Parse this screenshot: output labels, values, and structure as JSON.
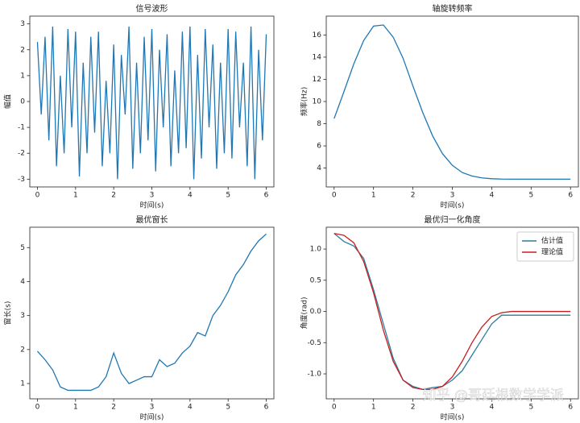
{
  "chart_data": [
    {
      "type": "line",
      "title": "信号波形",
      "xlabel": "时间(s)",
      "ylabel": "幅值",
      "x": [
        0,
        0.1,
        0.2,
        0.3,
        0.4,
        0.5,
        0.6,
        0.7,
        0.8,
        0.9,
        1.0,
        1.1,
        1.2,
        1.3,
        1.4,
        1.5,
        1.6,
        1.7,
        1.8,
        1.9,
        2.0,
        2.1,
        2.2,
        2.3,
        2.4,
        2.5,
        2.6,
        2.7,
        2.8,
        2.9,
        3.0,
        3.1,
        3.2,
        3.3,
        3.4,
        3.5,
        3.6,
        3.7,
        3.8,
        3.9,
        4.0,
        4.1,
        4.2,
        4.3,
        4.4,
        4.5,
        4.6,
        4.7,
        4.8,
        4.9,
        5.0,
        5.1,
        5.2,
        5.3,
        5.4,
        5.5,
        5.6,
        5.7,
        5.8,
        5.9,
        6.0
      ],
      "series": [
        {
          "color": "#1f77b4",
          "values": [
            2.3,
            -0.5,
            2.5,
            -1.5,
            2.9,
            -2.5,
            1.0,
            -2.0,
            2.8,
            -1.0,
            2.7,
            -2.9,
            1.5,
            -2.0,
            2.5,
            -1.2,
            2.7,
            -2.5,
            0.8,
            -2.0,
            2.2,
            -3.0,
            1.8,
            -0.5,
            2.9,
            -2.6,
            1.5,
            -2.0,
            2.5,
            -1.5,
            2.8,
            -2.7,
            2.0,
            -1.0,
            2.6,
            -2.5,
            1.2,
            -2.0,
            2.7,
            -1.8,
            2.9,
            -3.0,
            1.8,
            -2.2,
            2.8,
            -1.0,
            2.2,
            -2.6,
            1.5,
            -2.0,
            2.8,
            -2.2,
            2.7,
            -1.0,
            1.5,
            -2.5,
            2.9,
            -3.0,
            2.0,
            -1.5,
            2.6
          ]
        }
      ],
      "xlim": [
        -0.2,
        6.2
      ],
      "xticks": [
        0,
        1,
        2,
        3,
        4,
        5,
        6
      ],
      "ylim": [
        -3.3,
        3.3
      ],
      "yticks": [
        -3,
        -2,
        -1,
        0,
        1,
        2,
        3
      ]
    },
    {
      "type": "line",
      "title": "轴旋转频率",
      "xlabel": "时间(s)",
      "ylabel": "频率(Hz)",
      "x": [
        0,
        0.25,
        0.5,
        0.75,
        1.0,
        1.25,
        1.5,
        1.75,
        2.0,
        2.25,
        2.5,
        2.75,
        3.0,
        3.25,
        3.5,
        3.75,
        4.0,
        4.25,
        4.5,
        4.75,
        5.0,
        5.25,
        5.5,
        5.75,
        6.0
      ],
      "series": [
        {
          "color": "#1f77b4",
          "values": [
            8.46,
            10.9,
            13.4,
            15.5,
            16.8,
            16.9,
            15.8,
            13.9,
            11.4,
            9.0,
            6.9,
            5.3,
            4.25,
            3.6,
            3.28,
            3.12,
            3.04,
            3.01,
            3.0,
            3.0,
            3.0,
            3.0,
            3.0,
            3.0,
            3.0
          ]
        }
      ],
      "xlim": [
        -0.2,
        6.2
      ],
      "xticks": [
        0,
        1,
        2,
        3,
        4,
        5,
        6
      ],
      "ylim": [
        2.3,
        17.7
      ],
      "yticks": [
        4,
        6,
        8,
        10,
        12,
        14,
        16
      ]
    },
    {
      "type": "line",
      "title": "最优窗长",
      "xlabel": "时间(s)",
      "ylabel": "窗长(s)",
      "x": [
        0,
        0.2,
        0.4,
        0.6,
        0.8,
        1.0,
        1.2,
        1.4,
        1.6,
        1.8,
        2.0,
        2.2,
        2.4,
        2.6,
        2.8,
        3.0,
        3.2,
        3.4,
        3.6,
        3.8,
        4.0,
        4.2,
        4.4,
        4.6,
        4.8,
        5.0,
        5.2,
        5.4,
        5.6,
        5.8,
        6.0
      ],
      "series": [
        {
          "color": "#1f77b4",
          "values": [
            1.95,
            1.7,
            1.4,
            0.9,
            0.8,
            0.8,
            0.8,
            0.8,
            0.9,
            1.2,
            1.9,
            1.3,
            1.0,
            1.1,
            1.2,
            1.2,
            1.7,
            1.5,
            1.6,
            1.9,
            2.1,
            2.5,
            2.4,
            3.0,
            3.3,
            3.7,
            4.2,
            4.5,
            4.9,
            5.2,
            5.4
          ]
        }
      ],
      "xlim": [
        -0.2,
        6.2
      ],
      "xticks": [
        0,
        1,
        2,
        3,
        4,
        5,
        6
      ],
      "ylim": [
        0.55,
        5.6
      ],
      "yticks": [
        1,
        2,
        3,
        4,
        5
      ]
    },
    {
      "type": "line",
      "title": "最优归一化角度",
      "xlabel": "时间(s)",
      "ylabel": "角度(rad)",
      "legend": "upper right",
      "watermark": "知乎 @哥廷根数学学派",
      "x": [
        0,
        0.25,
        0.5,
        0.75,
        1.0,
        1.25,
        1.5,
        1.75,
        2.0,
        2.25,
        2.5,
        2.75,
        3.0,
        3.25,
        3.5,
        3.75,
        4.0,
        4.25,
        4.5,
        4.75,
        5.0,
        5.25,
        5.5,
        5.75,
        6.0
      ],
      "series": [
        {
          "name": "估计值",
          "color": "#2a7f9e",
          "values": [
            1.25,
            1.12,
            1.05,
            0.85,
            0.35,
            -0.2,
            -0.75,
            -1.1,
            -1.2,
            -1.25,
            -1.22,
            -1.2,
            -1.1,
            -0.95,
            -0.7,
            -0.45,
            -0.2,
            -0.06,
            -0.06,
            -0.06,
            -0.06,
            -0.06,
            -0.06,
            -0.06,
            -0.06
          ]
        },
        {
          "name": "理论值",
          "color": "#c81e1e",
          "values": [
            1.25,
            1.22,
            1.1,
            0.8,
            0.3,
            -0.3,
            -0.8,
            -1.1,
            -1.22,
            -1.25,
            -1.25,
            -1.2,
            -1.05,
            -0.8,
            -0.5,
            -0.25,
            -0.08,
            -0.02,
            0,
            0,
            0,
            0,
            0,
            0,
            0
          ]
        }
      ],
      "xlim": [
        -0.2,
        6.2
      ],
      "xticks": [
        0,
        1,
        2,
        3,
        4,
        5,
        6
      ],
      "ylim": [
        -1.4,
        1.35
      ],
      "yticks": [
        {
          "value": -1,
          "label": "-1.0"
        },
        -0.5,
        {
          "value": 0,
          "label": "0.0"
        },
        0.5,
        {
          "value": 1,
          "label": "1.0"
        }
      ]
    }
  ]
}
